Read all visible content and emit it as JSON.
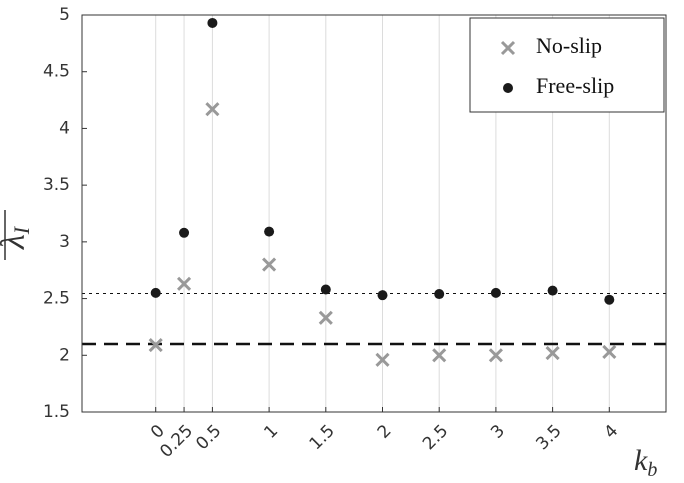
{
  "chart_data": {
    "type": "scatter",
    "x": [
      0,
      0.25,
      0.5,
      1,
      1.5,
      2,
      2.5,
      3,
      3.5,
      4
    ],
    "series": [
      {
        "name": "No-slip",
        "color": "#999999",
        "marker": "x",
        "values": [
          2.09,
          2.63,
          4.17,
          2.8,
          2.33,
          1.96,
          2.0,
          2.0,
          2.02,
          2.03
        ]
      },
      {
        "name": "Free-slip",
        "color": "#1a1a1a",
        "marker": "o",
        "values": [
          2.55,
          3.08,
          4.93,
          3.09,
          2.58,
          2.53,
          2.54,
          2.55,
          2.57,
          2.49
        ]
      }
    ],
    "hlines": [
      {
        "value": 2.545,
        "style": "dotted"
      },
      {
        "value": 2.1,
        "style": "dashed"
      }
    ],
    "xlim": [
      -0.65,
      4.5
    ],
    "ylim": [
      1.5,
      5
    ],
    "xticks": [
      0,
      0.25,
      0.5,
      1,
      1.5,
      2,
      2.5,
      3,
      3.5,
      4
    ],
    "yticks": [
      1.5,
      2,
      2.5,
      3,
      3.5,
      4,
      4.5,
      5
    ],
    "xlabel": {
      "text": "k",
      "sub": "b"
    },
    "ylabel": {
      "text": "λ",
      "sub": "I"
    },
    "grid": "x",
    "legend": "top-right"
  }
}
